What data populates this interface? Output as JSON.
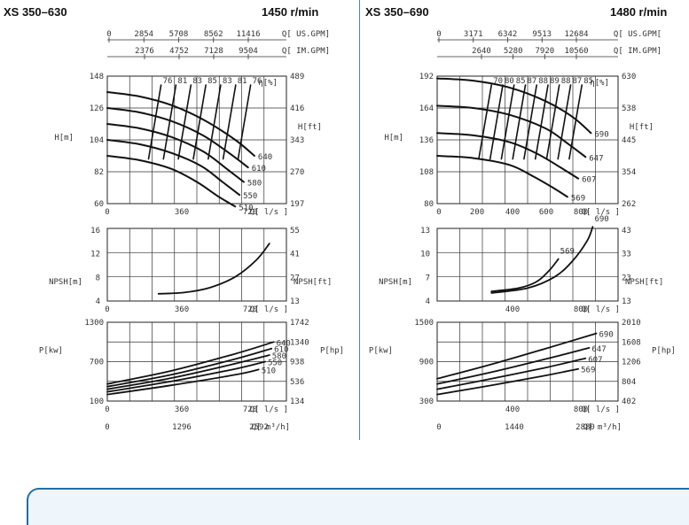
{
  "chart_data": [
    {
      "type": "line",
      "title": "XS 350–630",
      "speed": "1450 r/min",
      "top_axes": {
        "usgpm": {
          "ticks": [
            "0",
            "2854",
            "5708",
            "8562",
            "11416"
          ],
          "unit": "Q[ US.GPM]"
        },
        "imgpm": {
          "ticks": [
            "2376",
            "4752",
            "7128",
            "9504"
          ],
          "unit": "Q[ IM.GPM]"
        }
      },
      "head": {
        "ylabel": "H[m]",
        "ylabel_right": "H[ft]",
        "eff_label": "η[%]",
        "ylim": [
          60,
          148
        ],
        "xlim": [
          0,
          840
        ],
        "yticks": [
          "148",
          "126",
          "104",
          "82",
          "60"
        ],
        "yticks_right": [
          "489",
          "416",
          "343",
          "270",
          "197"
        ],
        "xticks": [
          "0",
          "360",
          "720"
        ],
        "xunit": "Q[ l/s ]",
        "series": [
          {
            "name": "640",
            "x": [
              0,
              150,
              300,
              450,
              600,
              690
            ],
            "y": [
              137,
              134,
              128,
              118,
              104,
              93
            ]
          },
          {
            "name": "610",
            "x": [
              0,
              150,
              300,
              450,
              580,
              660
            ],
            "y": [
              126,
              123,
              117,
              107,
              94,
              85
            ]
          },
          {
            "name": "580",
            "x": [
              0,
              150,
              300,
              450,
              560,
              640
            ],
            "y": [
              115,
              112,
              106,
              96,
              84,
              75
            ]
          },
          {
            "name": "550",
            "x": [
              0,
              150,
              300,
              440,
              540,
              620
            ],
            "y": [
              104,
              101,
              95,
              86,
              75,
              66
            ]
          },
          {
            "name": "510",
            "x": [
              0,
              150,
              300,
              420,
              520,
              600
            ],
            "y": [
              93,
              90,
              84,
              75,
              65,
              58
            ]
          }
        ],
        "curve_labels": [
          "640",
          "610",
          "580",
          "550",
          "510"
        ],
        "efficiency_labels": [
          "76",
          "81",
          "83",
          "85",
          "83",
          "81",
          "76"
        ]
      },
      "npsh": {
        "ylabel": "NPSH[m]",
        "ylabel_right": "NPSH[ft]",
        "yticks": [
          "16",
          "12",
          "8",
          "4"
        ],
        "yticks_right": [
          "55",
          "41",
          "27",
          "13"
        ],
        "xticks": [
          "0",
          "360",
          "720"
        ],
        "xunit": "Q[ l/s ]",
        "ylim": [
          4,
          16
        ],
        "xlim": [
          0,
          840
        ],
        "series": [
          {
            "name": "NPSH",
            "x": [
              240,
              360,
              480,
              600,
              700,
              760
            ],
            "y": [
              5.2,
              5.4,
              6.2,
              8.0,
              10.8,
              13.5
            ]
          }
        ]
      },
      "power": {
        "ylabel": "P[kw]",
        "ylabel_right": "P[hp]",
        "yticks": [
          "1300",
          "700",
          "100"
        ],
        "yticks_right": [
          "1742",
          "1340",
          "938",
          "536",
          "134"
        ],
        "xticks": [
          "0",
          "360",
          "720"
        ],
        "xunit": "Q[ l/s ]",
        "ylim": [
          100,
          1300
        ],
        "xlim": [
          0,
          840
        ],
        "series": [
          {
            "name": "640",
            "x": [
              0,
              300,
              600,
              780
            ],
            "y": [
              360,
              560,
              820,
              1000
            ]
          },
          {
            "name": "610",
            "x": [
              0,
              300,
              600,
              770
            ],
            "y": [
              320,
              500,
              740,
              900
            ]
          },
          {
            "name": "580",
            "x": [
              0,
              300,
              600,
              760
            ],
            "y": [
              280,
              450,
              670,
              800
            ]
          },
          {
            "name": "550",
            "x": [
              0,
              300,
              600,
              740
            ],
            "y": [
              240,
              400,
              590,
              700
            ]
          },
          {
            "name": "510",
            "x": [
              0,
              300,
              600,
              710
            ],
            "y": [
              200,
              340,
              500,
              580
            ]
          }
        ]
      },
      "m3h_axis": {
        "ticks": [
          "0",
          "1296",
          "2592"
        ],
        "unit": "Q[ m³/h]"
      }
    },
    {
      "type": "line",
      "title": "XS 350–690",
      "speed": "1480 r/min",
      "top_axes": {
        "usgpm": {
          "ticks": [
            "0",
            "3171",
            "6342",
            "9513",
            "12684"
          ],
          "unit": "Q[ US.GPM["
        },
        "imgpm": {
          "ticks": [
            "2640",
            "5280",
            "7920",
            "10560"
          ],
          "unit": "Q[ IM.GPM]"
        }
      },
      "head": {
        "ylabel": "H[m]",
        "ylabel_right": "H[ft]",
        "eff_label": "η[%]",
        "ylim": [
          80,
          192
        ],
        "xlim": [
          0,
          1000
        ],
        "yticks": [
          "192",
          "164",
          "136",
          "108",
          "80"
        ],
        "yticks_right": [
          "630",
          "538",
          "445",
          "354",
          "262"
        ],
        "xticks": [
          "0",
          "200",
          "400",
          "600",
          "800"
        ],
        "xunit": "Q[ l/s ]",
        "series": [
          {
            "name": "690",
            "x": [
              0,
              200,
              400,
              600,
              750,
              850
            ],
            "y": [
              190,
              188,
              182,
              170,
              156,
              142
            ]
          },
          {
            "name": "647",
            "x": [
              0,
              200,
              400,
              600,
              720,
              820
            ],
            "y": [
              166,
              164,
              158,
              146,
              133,
              121
            ]
          },
          {
            "name": "607",
            "x": [
              0,
              200,
              400,
              550,
              680,
              780
            ],
            "y": [
              142,
              140,
              134,
              124,
              112,
              102
            ]
          },
          {
            "name": "569",
            "x": [
              0,
              200,
              400,
              530,
              640,
              720
            ],
            "y": [
              122,
              120,
              114,
              104,
              94,
              86
            ]
          }
        ],
        "curve_labels": [
          "690",
          "647",
          "607",
          "569"
        ],
        "efficiency_labels": [
          "70",
          "80",
          "85",
          "87",
          "88",
          "89",
          "88",
          "87",
          "85"
        ]
      },
      "npsh": {
        "ylabel": "NPSH[m]",
        "ylabel_right": "NPSH[ft]",
        "yticks": [
          "13",
          "10",
          "7",
          "4"
        ],
        "yticks_right": [
          "43",
          "33",
          "23",
          "13"
        ],
        "xticks": [
          "400",
          "800"
        ],
        "xunit": "Q[ l/s ]",
        "ylim": [
          4,
          13
        ],
        "xlim": [
          0,
          1000
        ],
        "series": [
          {
            "name": "569",
            "x": [
              300,
              450,
              550,
              620,
              670
            ],
            "y": [
              5.2,
              5.6,
              6.4,
              7.8,
              9.2
            ]
          },
          {
            "name": "690",
            "x": [
              300,
              500,
              650,
              750,
              830,
              860
            ],
            "y": [
              5.0,
              5.6,
              7.0,
              9.0,
              11.5,
              13.2
            ]
          }
        ]
      },
      "power": {
        "ylabel": "P[kw]",
        "ylabel_right": "P[hp]",
        "yticks": [
          "1500",
          "900",
          "300"
        ],
        "yticks_right": [
          "2010",
          "1608",
          "1206",
          "804",
          "402"
        ],
        "xticks": [
          "400",
          "800"
        ],
        "xunit": "Q[ l/s ]",
        "ylim": [
          300,
          1500
        ],
        "xlim": [
          0,
          1000
        ],
        "series": [
          {
            "name": "690",
            "x": [
              0,
              300,
              600,
              880
            ],
            "y": [
              640,
              860,
              1100,
              1330
            ]
          },
          {
            "name": "647",
            "x": [
              0,
              300,
              600,
              840
            ],
            "y": [
              560,
              740,
              940,
              1110
            ]
          },
          {
            "name": "607",
            "x": [
              0,
              300,
              600,
              820
            ],
            "y": [
              480,
              640,
              810,
              950
            ]
          },
          {
            "name": "569",
            "x": [
              0,
              300,
              600,
              780
            ],
            "y": [
              400,
              540,
              690,
              790
            ]
          }
        ]
      },
      "m3h_axis": {
        "ticks": [
          "0",
          "1440",
          "2880"
        ],
        "unit": "Q[ m³/h]"
      }
    }
  ]
}
